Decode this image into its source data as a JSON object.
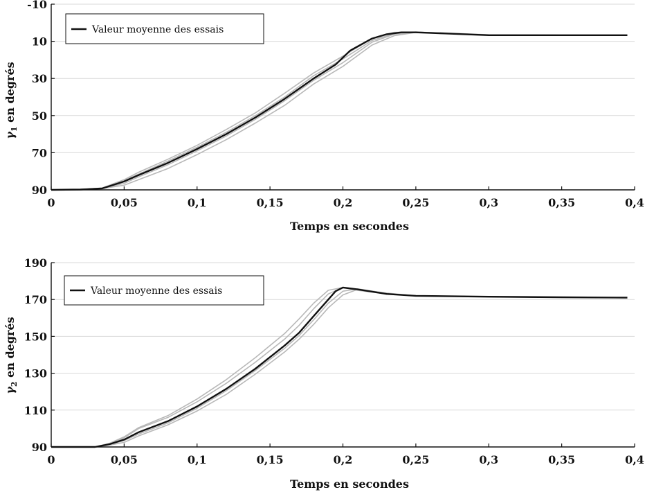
{
  "chart_data": [
    {
      "type": "line",
      "xlabel": "Temps en secondes",
      "ylabel_symbol": "γ",
      "ylabel_sub": "1",
      "ylabel_text": " en degrés",
      "xlim": [
        0,
        0.4
      ],
      "ylim": [
        90,
        -10
      ],
      "y_inverted": true,
      "x_ticks": [
        0,
        0.05,
        0.1,
        0.15,
        0.2,
        0.25,
        0.3,
        0.35,
        0.4
      ],
      "x_tick_labels": [
        "0",
        "0,05",
        "0,1",
        "0,15",
        "0,2",
        "0,25",
        "0,3",
        "0,35",
        "0,4"
      ],
      "y_ticks": [
        -10,
        10,
        30,
        50,
        70,
        90
      ],
      "y_tick_labels": [
        "-10",
        "10",
        "30",
        "50",
        "70",
        "90"
      ],
      "grid": true,
      "legend": {
        "label": "Valeur moyenne des essais",
        "position": "top-left"
      },
      "mean_series": {
        "name": "Valeur moyenne des essais",
        "x": [
          0,
          0.02,
          0.035,
          0.05,
          0.06,
          0.08,
          0.1,
          0.12,
          0.14,
          0.16,
          0.18,
          0.195,
          0.205,
          0.22,
          0.23,
          0.24,
          0.25,
          0.27,
          0.3,
          0.35,
          0.395
        ],
        "y": [
          90,
          89.8,
          89.2,
          85.5,
          82,
          75.5,
          68,
          60,
          51,
          41,
          30,
          22.5,
          15,
          8.5,
          6.2,
          5.2,
          5.2,
          5.8,
          6.7,
          6.7,
          6.7
        ]
      },
      "trial_series": [
        {
          "x": [
            0,
            0.02,
            0.035,
            0.05,
            0.06,
            0.08,
            0.1,
            0.12,
            0.14,
            0.16,
            0.18,
            0.2,
            0.22,
            0.235,
            0.25,
            0.27,
            0.3,
            0.35,
            0.395
          ],
          "y": [
            90,
            89.8,
            89.2,
            87.5,
            84.5,
            78.5,
            71,
            63,
            54,
            44.5,
            33,
            23.5,
            12,
            7,
            5.2,
            5.5,
            6.5,
            6.7,
            6.7
          ]
        },
        {
          "x": [
            0,
            0.02,
            0.035,
            0.05,
            0.06,
            0.08,
            0.1,
            0.12,
            0.14,
            0.16,
            0.18,
            0.2,
            0.22,
            0.235,
            0.25,
            0.27,
            0.3,
            0.35,
            0.395
          ],
          "y": [
            90,
            89.8,
            89,
            84.5,
            80.5,
            73.5,
            66,
            57.5,
            48.5,
            38,
            27,
            18,
            8.5,
            5.2,
            5,
            5.6,
            6.6,
            6.7,
            6.7
          ]
        },
        {
          "x": [
            0,
            0.02,
            0.035,
            0.05,
            0.06,
            0.08,
            0.1,
            0.12,
            0.14,
            0.16,
            0.18,
            0.2,
            0.22,
            0.235,
            0.25,
            0.27,
            0.3,
            0.35,
            0.395
          ],
          "y": [
            90,
            89.8,
            89.3,
            86.5,
            83,
            76.5,
            69,
            61,
            52,
            42,
            31,
            21.5,
            10.5,
            6.2,
            5.1,
            5.6,
            6.6,
            6.7,
            6.7
          ]
        },
        {
          "x": [
            0,
            0.02,
            0.035,
            0.05,
            0.06,
            0.08,
            0.1,
            0.12,
            0.14,
            0.16,
            0.18,
            0.2,
            0.22,
            0.235,
            0.25,
            0.27,
            0.3,
            0.35,
            0.395
          ],
          "y": [
            90,
            89.8,
            89,
            85,
            81.5,
            74.5,
            67,
            59,
            50,
            40,
            28.5,
            19.5,
            9.5,
            5.8,
            5,
            5.7,
            6.6,
            6.7,
            6.7
          ]
        }
      ]
    },
    {
      "type": "line",
      "xlabel": "Temps en secondes",
      "ylabel_symbol": "γ",
      "ylabel_sub": "2",
      "ylabel_text": " en degrés",
      "xlim": [
        0,
        0.4
      ],
      "ylim": [
        90,
        190
      ],
      "y_inverted": false,
      "x_ticks": [
        0,
        0.05,
        0.1,
        0.15,
        0.2,
        0.25,
        0.3,
        0.35,
        0.4
      ],
      "x_tick_labels": [
        "0",
        "0,05",
        "0,1",
        "0,15",
        "0,2",
        "0,25",
        "0,3",
        "0,35",
        "0,4"
      ],
      "y_ticks": [
        90,
        110,
        130,
        150,
        170,
        190
      ],
      "y_tick_labels": [
        "90",
        "110",
        "130",
        "150",
        "170",
        "190"
      ],
      "grid": true,
      "legend": {
        "label": "Valeur moyenne des essais",
        "position": "top-left"
      },
      "mean_series": {
        "name": "Valeur moyenne des essais",
        "x": [
          0,
          0.03,
          0.04,
          0.05,
          0.06,
          0.08,
          0.1,
          0.12,
          0.14,
          0.16,
          0.17,
          0.18,
          0.19,
          0.195,
          0.2,
          0.21,
          0.23,
          0.25,
          0.3,
          0.35,
          0.395
        ],
        "y": [
          90,
          90,
          91.5,
          94,
          98,
          104,
          112,
          121.5,
          132.5,
          145,
          152,
          161,
          170,
          174.5,
          176.5,
          175.5,
          173,
          172,
          171.5,
          171.2,
          171
        ]
      },
      "trial_series": [
        {
          "x": [
            0,
            0.03,
            0.04,
            0.05,
            0.06,
            0.08,
            0.1,
            0.12,
            0.14,
            0.16,
            0.17,
            0.18,
            0.19,
            0.2,
            0.21,
            0.23,
            0.25,
            0.3,
            0.35,
            0.395
          ],
          "y": [
            90,
            90,
            91.5,
            95,
            100,
            106,
            114.5,
            124.5,
            136,
            148.5,
            156,
            165,
            173,
            176.5,
            175.5,
            173,
            172,
            171.5,
            171.2,
            171
          ]
        },
        {
          "x": [
            0,
            0.03,
            0.04,
            0.05,
            0.06,
            0.08,
            0.1,
            0.12,
            0.14,
            0.16,
            0.17,
            0.18,
            0.19,
            0.2,
            0.21,
            0.23,
            0.25,
            0.3,
            0.35,
            0.395
          ],
          "y": [
            90,
            90,
            91,
            92.5,
            96,
            102,
            109.5,
            118.5,
            129.5,
            141.5,
            148.5,
            156.5,
            165.5,
            172.5,
            175.5,
            173.5,
            172,
            171.5,
            171.2,
            171
          ]
        },
        {
          "x": [
            0,
            0.03,
            0.04,
            0.05,
            0.06,
            0.08,
            0.1,
            0.12,
            0.14,
            0.16,
            0.17,
            0.18,
            0.19,
            0.2,
            0.21,
            0.23,
            0.25,
            0.3,
            0.35,
            0.395
          ],
          "y": [
            90,
            90,
            92,
            95.5,
            100.5,
            107,
            116,
            126.5,
            138.5,
            151.5,
            159.5,
            168,
            175,
            176.5,
            175,
            173,
            172,
            171.5,
            171.2,
            171
          ]
        },
        {
          "x": [
            0,
            0.03,
            0.04,
            0.05,
            0.06,
            0.08,
            0.1,
            0.12,
            0.14,
            0.16,
            0.17,
            0.18,
            0.19,
            0.2,
            0.21,
            0.23,
            0.25,
            0.3,
            0.35,
            0.395
          ],
          "y": [
            90,
            90,
            91.2,
            93.5,
            97,
            103,
            111,
            120.5,
            131.5,
            143.5,
            150.5,
            159,
            168,
            174.5,
            175.8,
            173.3,
            172,
            171.5,
            171.2,
            171
          ]
        }
      ]
    }
  ]
}
